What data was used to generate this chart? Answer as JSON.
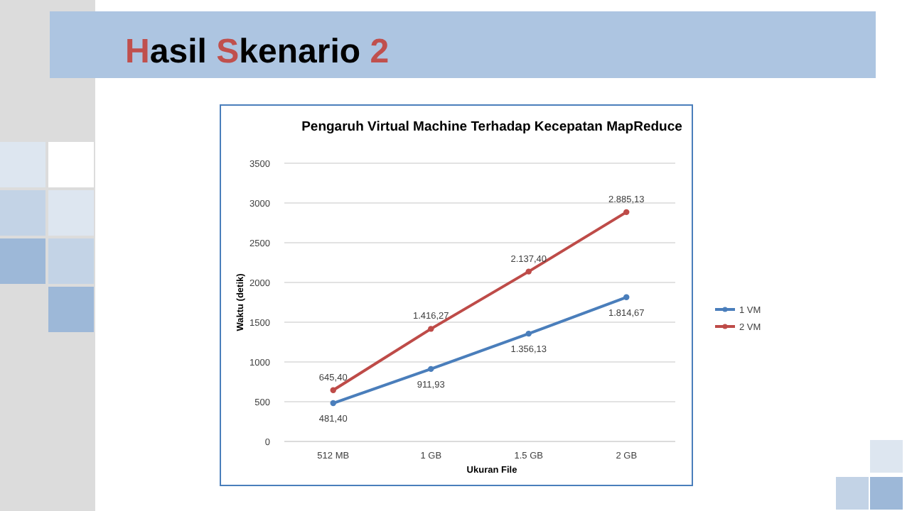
{
  "chart_data": {
    "type": "line",
    "title": "Pengaruh Virtual Machine Terhadap Kecepatan MapReduce",
    "annotations": [
      "Hasil Skenario 2"
    ],
    "xlabel": "Ukuran File",
    "ylabel": "Waktu (detik)",
    "categories": [
      "512 MB",
      "1 GB",
      "1.5 GB",
      "2 GB"
    ],
    "series": [
      {
        "name": "1 VM",
        "color": "#4a7ebb",
        "values": [
          481.4,
          911.93,
          1356.13,
          1814.67
        ],
        "value_labels": [
          "481,40",
          "911,93",
          "1.356,13",
          "1.814,67"
        ]
      },
      {
        "name": "2 VM",
        "color": "#be4b48",
        "values": [
          645.4,
          1416.27,
          2137.4,
          2885.13
        ],
        "value_labels": [
          "645,40",
          "1.416,27",
          "2.137,40",
          "2.885,13"
        ]
      }
    ],
    "ylim": [
      0,
      3500
    ],
    "yticks": [
      0,
      500,
      1000,
      1500,
      2000,
      2500,
      3000,
      3500
    ],
    "grid": "y",
    "legend": "right",
    "marker": "circle",
    "line_style": "solid"
  }
}
